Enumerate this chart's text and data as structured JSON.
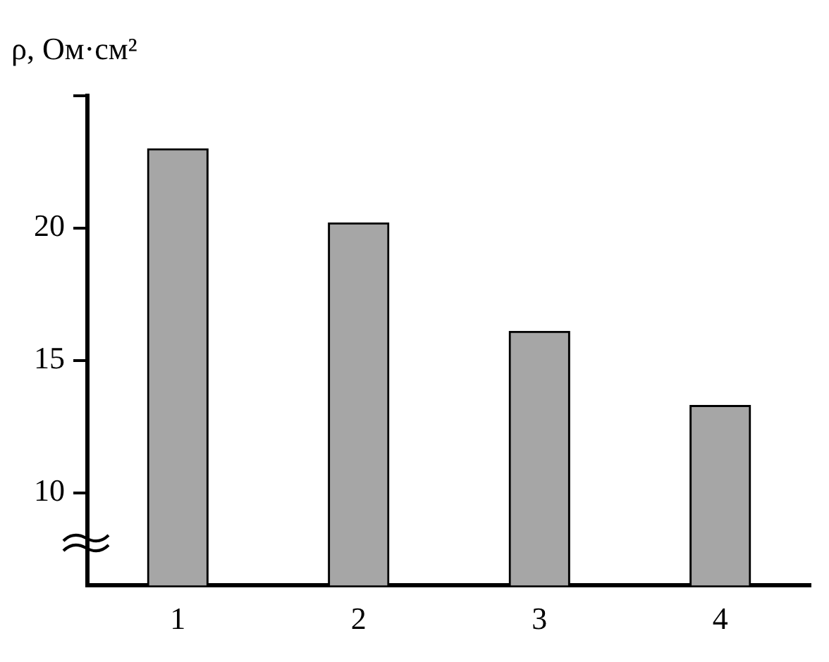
{
  "chart_data": {
    "type": "bar",
    "ylabel": "ρ, Ом·см²",
    "categories": [
      "1",
      "2",
      "3",
      "4"
    ],
    "values": [
      23.0,
      20.2,
      16.1,
      13.3
    ],
    "color": "#a6a6a6",
    "ylim": [
      6.5,
      25
    ],
    "yticks": [
      10,
      15,
      20,
      {
        "value": 25,
        "label": null
      }
    ],
    "grid": false,
    "legend": false
  }
}
